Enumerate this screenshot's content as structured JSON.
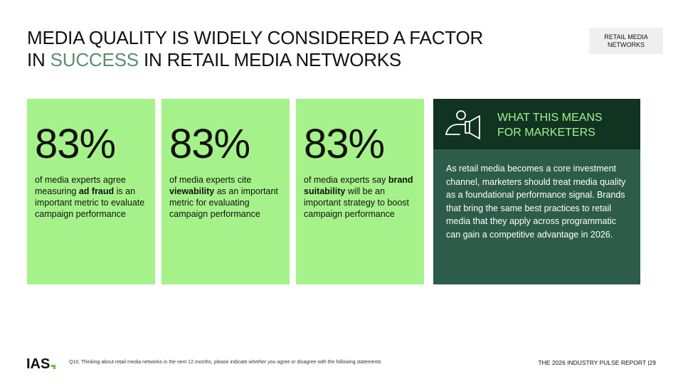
{
  "slide": {
    "title_line1": "MEDIA QUALITY IS WIDELY CONSIDERED A FACTOR",
    "title_line2_pre": "IN ",
    "title_line2_accent": "SUCCESS",
    "title_line2_post": " IN RETAIL MEDIA NETWORKS",
    "section_tag_line1": "RETAIL MEDIA",
    "section_tag_line2": "NETWORKS"
  },
  "stats": [
    {
      "value": "83%",
      "desc_pre": "of media experts agree measuring ",
      "desc_bold": "ad fraud",
      "desc_post": " is an important metric to evaluate campaign performance"
    },
    {
      "value": "83%",
      "desc_pre": "of media experts cite ",
      "desc_bold": "viewability",
      "desc_post": " as an important metric for evaluating campaign performance"
    },
    {
      "value": "83%",
      "desc_pre": "of media experts say ",
      "desc_bold": "brand suitability",
      "desc_post": " will be an important strategy to boost campaign performance"
    }
  ],
  "marketers": {
    "icon": "megaphone-person-icon",
    "heading_line1": "WHAT THIS MEANS",
    "heading_line2": "FOR MARKETERS",
    "body": "As retail media becomes a core investment channel, marketers should treat media quality as a foundational performance signal. Brands that bring the same best practices to retail media that they apply across programmatic can gain a competitive advantage in 2026."
  },
  "footer": {
    "logo_text": "IAS",
    "footnote": "Q10. Thinking about retail media networks in the next 12 months, please indicate whether you agree or disagree with the following statements",
    "report_label": "THE 2026 INDUSTRY PULSE REPORT",
    "page_separator": "|",
    "page_number": "29"
  },
  "colors": {
    "accent_green": "#a6f28a",
    "title_accent": "#5b8c6e",
    "panel_dark": "#103322",
    "panel_mid": "#2d5c4a"
  }
}
